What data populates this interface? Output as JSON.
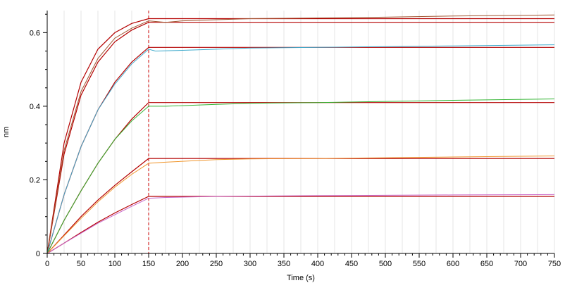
{
  "chart_data": {
    "type": "line",
    "title": "",
    "xlabel": "Time (s)",
    "ylabel": "nm",
    "xlim": [
      0,
      750
    ],
    "ylim": [
      0,
      0.66
    ],
    "x_ticks": [
      0,
      50,
      100,
      150,
      200,
      250,
      300,
      350,
      400,
      450,
      500,
      550,
      600,
      650,
      700,
      750
    ],
    "x_tick_labels": [
      "0",
      "50",
      "100",
      "150",
      "200",
      "250",
      "300",
      "350",
      "400",
      "450",
      "500",
      "550",
      "600",
      "650",
      "700",
      "750"
    ],
    "y_ticks": [
      0,
      0.2,
      0.4,
      0.6
    ],
    "y_tick_labels": [
      "0",
      "0.2",
      "0.4",
      "0.6"
    ],
    "grid": "vertical",
    "legend": "none",
    "annotations": [
      {
        "type": "vertical-dashed-line",
        "x": 150,
        "color": "#cc0000"
      }
    ],
    "series": [
      {
        "color": "#a0522d",
        "points": [
          [
            0,
            0
          ],
          [
            25,
            0.28
          ],
          [
            50,
            0.44
          ],
          [
            75,
            0.53
          ],
          [
            100,
            0.585
          ],
          [
            125,
            0.612
          ],
          [
            150,
            0.632
          ],
          [
            175,
            0.628
          ],
          [
            200,
            0.632
          ],
          [
            300,
            0.638
          ],
          [
            400,
            0.64
          ],
          [
            500,
            0.642
          ],
          [
            600,
            0.645
          ],
          [
            750,
            0.648
          ]
        ]
      },
      {
        "color": "#3eaacc",
        "points": [
          [
            0,
            0
          ],
          [
            25,
            0.16
          ],
          [
            50,
            0.29
          ],
          [
            75,
            0.39
          ],
          [
            100,
            0.46
          ],
          [
            125,
            0.515
          ],
          [
            150,
            0.555
          ],
          [
            160,
            0.55
          ],
          [
            200,
            0.552
          ],
          [
            250,
            0.555
          ],
          [
            300,
            0.558
          ],
          [
            400,
            0.56
          ],
          [
            500,
            0.562
          ],
          [
            600,
            0.564
          ],
          [
            750,
            0.567
          ]
        ]
      },
      {
        "color": "#32b432",
        "points": [
          [
            0,
            0
          ],
          [
            25,
            0.09
          ],
          [
            50,
            0.17
          ],
          [
            75,
            0.245
          ],
          [
            100,
            0.31
          ],
          [
            125,
            0.36
          ],
          [
            150,
            0.4
          ],
          [
            175,
            0.4
          ],
          [
            250,
            0.405
          ],
          [
            300,
            0.408
          ],
          [
            400,
            0.41
          ],
          [
            500,
            0.413
          ],
          [
            600,
            0.416
          ],
          [
            750,
            0.42
          ]
        ]
      },
      {
        "color": "#f0962d",
        "points": [
          [
            0,
            0
          ],
          [
            25,
            0.048
          ],
          [
            50,
            0.095
          ],
          [
            75,
            0.14
          ],
          [
            100,
            0.18
          ],
          [
            125,
            0.215
          ],
          [
            150,
            0.245
          ],
          [
            175,
            0.248
          ],
          [
            250,
            0.255
          ],
          [
            300,
            0.257
          ],
          [
            400,
            0.258
          ],
          [
            500,
            0.26
          ],
          [
            600,
            0.262
          ],
          [
            750,
            0.265
          ]
        ]
      },
      {
        "color": "#c864c8",
        "points": [
          [
            0,
            0
          ],
          [
            25,
            0.028
          ],
          [
            50,
            0.055
          ],
          [
            75,
            0.082
          ],
          [
            100,
            0.105
          ],
          [
            125,
            0.128
          ],
          [
            150,
            0.15
          ],
          [
            175,
            0.152
          ],
          [
            250,
            0.155
          ],
          [
            400,
            0.157
          ],
          [
            500,
            0.158
          ],
          [
            600,
            0.159
          ],
          [
            750,
            0.16
          ]
        ]
      }
    ],
    "fits": [
      {
        "color": "#b40000",
        "points": [
          [
            0,
            0
          ],
          [
            25,
            0.3
          ],
          [
            50,
            0.465
          ],
          [
            75,
            0.555
          ],
          [
            100,
            0.6
          ],
          [
            125,
            0.625
          ],
          [
            150,
            0.638
          ],
          [
            750,
            0.638
          ]
        ]
      },
      {
        "color": "#b40000",
        "points": [
          [
            0,
            0
          ],
          [
            25,
            0.27
          ],
          [
            50,
            0.43
          ],
          [
            75,
            0.52
          ],
          [
            100,
            0.575
          ],
          [
            125,
            0.607
          ],
          [
            150,
            0.628
          ],
          [
            750,
            0.628
          ]
        ]
      },
      {
        "color": "#b40000",
        "points": [
          [
            0,
            0
          ],
          [
            25,
            0.16
          ],
          [
            50,
            0.29
          ],
          [
            75,
            0.39
          ],
          [
            100,
            0.465
          ],
          [
            125,
            0.52
          ],
          [
            150,
            0.56
          ],
          [
            750,
            0.56
          ]
        ]
      },
      {
        "color": "#b40000",
        "points": [
          [
            0,
            0
          ],
          [
            25,
            0.09
          ],
          [
            50,
            0.17
          ],
          [
            75,
            0.245
          ],
          [
            100,
            0.31
          ],
          [
            125,
            0.365
          ],
          [
            150,
            0.41
          ],
          [
            750,
            0.41
          ]
        ]
      },
      {
        "color": "#b40000",
        "points": [
          [
            0,
            0
          ],
          [
            25,
            0.05
          ],
          [
            50,
            0.1
          ],
          [
            75,
            0.145
          ],
          [
            100,
            0.185
          ],
          [
            125,
            0.222
          ],
          [
            150,
            0.258
          ],
          [
            750,
            0.258
          ]
        ]
      },
      {
        "color": "#b40000",
        "points": [
          [
            0,
            0
          ],
          [
            25,
            0.028
          ],
          [
            50,
            0.057
          ],
          [
            75,
            0.085
          ],
          [
            100,
            0.11
          ],
          [
            125,
            0.133
          ],
          [
            150,
            0.155
          ],
          [
            750,
            0.155
          ]
        ]
      }
    ]
  }
}
